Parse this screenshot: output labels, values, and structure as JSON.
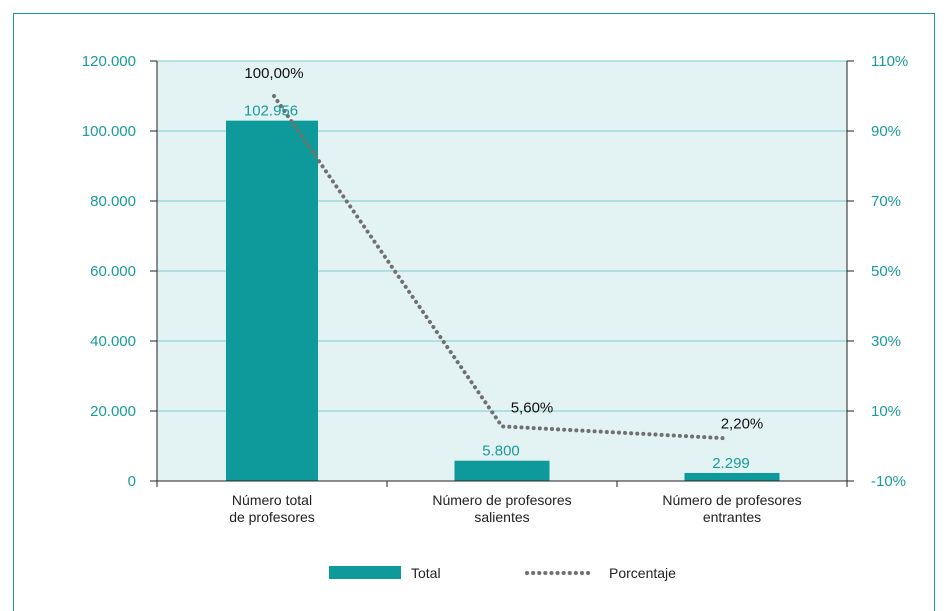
{
  "colors": {
    "bar": "#0e9a9a",
    "plot_bg": "#e3f3f3",
    "line": "#707070",
    "frame": "#1a9a9c",
    "axis_text": "#1a9a9c"
  },
  "legend": {
    "bar_label": "Total",
    "line_label": "Porcentaje",
    "position": "bottom"
  },
  "chart_data": {
    "type": "bar",
    "categories": [
      [
        "Número total",
        "de profesores"
      ],
      [
        "Número de profesores",
        "salientes"
      ],
      [
        "Número de profesores",
        "entrantes"
      ]
    ],
    "series": [
      {
        "name": "Total",
        "type": "bar",
        "axis": "left",
        "values": [
          102956,
          5800,
          2299
        ],
        "labels": [
          "102.956",
          "5.800",
          "2.299"
        ]
      },
      {
        "name": "Porcentaje",
        "type": "line",
        "style": "dotted",
        "axis": "right",
        "values": [
          100,
          5.6,
          2.2
        ],
        "labels": [
          "100,00%",
          "5,60%",
          "2,20%"
        ]
      }
    ],
    "y_left": {
      "ylim": [
        0,
        120000
      ],
      "ticks": [
        0,
        20000,
        40000,
        60000,
        80000,
        100000,
        120000
      ],
      "tick_labels": [
        "0",
        "20.000",
        "40.000",
        "60.000",
        "80.000",
        "100.000",
        "120.000"
      ]
    },
    "y_right": {
      "ylim": [
        -10,
        110
      ],
      "ticks": [
        -10,
        10,
        30,
        50,
        70,
        90,
        110
      ],
      "tick_labels": [
        "-10%",
        "10%",
        "30%",
        "50%",
        "70%",
        "90%",
        "110%"
      ]
    },
    "grid": true
  }
}
